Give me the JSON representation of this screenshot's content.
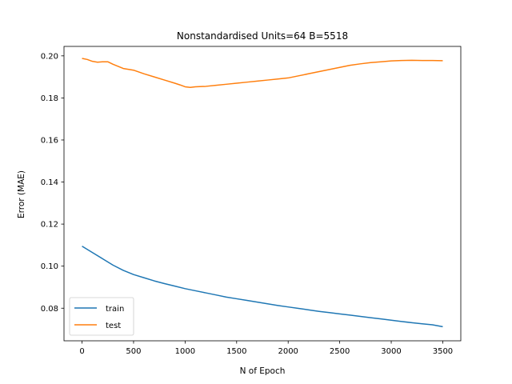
{
  "chart_data": {
    "type": "line",
    "title": "Nonstandardised Units=64 B=5518",
    "xlabel": "N of Epoch",
    "ylabel": "Error (MAE)",
    "xlim": [
      -175,
      3675
    ],
    "ylim": [
      0.0645,
      0.2045
    ],
    "xticks": [
      0,
      500,
      1000,
      1500,
      2000,
      2500,
      3000,
      3500
    ],
    "yticks": [
      0.08,
      0.1,
      0.12,
      0.14,
      0.16,
      0.18,
      0.2
    ],
    "ytick_labels": [
      "0.08",
      "0.10",
      "0.12",
      "0.14",
      "0.16",
      "0.18",
      "0.20"
    ],
    "grid": false,
    "legend_position": "lower-left",
    "series": [
      {
        "name": "train",
        "color": "#1f77b4",
        "x": [
          0,
          100,
          200,
          300,
          400,
          500,
          600,
          700,
          800,
          900,
          1000,
          1100,
          1200,
          1300,
          1400,
          1500,
          1600,
          1700,
          1800,
          1900,
          2000,
          2100,
          2200,
          2300,
          2400,
          2500,
          2600,
          2700,
          2800,
          2900,
          3000,
          3100,
          3200,
          3300,
          3400,
          3500
        ],
        "y": [
          0.1095,
          0.1065,
          0.1035,
          0.1005,
          0.098,
          0.096,
          0.0945,
          0.093,
          0.0917,
          0.0905,
          0.0893,
          0.0883,
          0.0873,
          0.0863,
          0.0853,
          0.0845,
          0.0837,
          0.0829,
          0.0821,
          0.0813,
          0.0806,
          0.0799,
          0.0792,
          0.0785,
          0.0779,
          0.0773,
          0.0767,
          0.0761,
          0.0755,
          0.0749,
          0.0743,
          0.0737,
          0.0731,
          0.0726,
          0.0721,
          0.0712
        ]
      },
      {
        "name": "test",
        "color": "#ff7f0e",
        "x": [
          0,
          50,
          100,
          150,
          200,
          250,
          300,
          350,
          400,
          500,
          600,
          700,
          800,
          900,
          950,
          1000,
          1050,
          1100,
          1200,
          1300,
          1400,
          1500,
          1600,
          1700,
          1800,
          1900,
          2000,
          2100,
          2200,
          2300,
          2400,
          2500,
          2600,
          2700,
          2800,
          2900,
          3000,
          3100,
          3200,
          3300,
          3400,
          3500
        ],
        "y": [
          0.1988,
          0.1983,
          0.1974,
          0.197,
          0.1972,
          0.1972,
          0.196,
          0.195,
          0.194,
          0.1932,
          0.1915,
          0.19,
          0.1885,
          0.187,
          0.1862,
          0.1853,
          0.185,
          0.1853,
          0.1855,
          0.186,
          0.1865,
          0.187,
          0.1875,
          0.188,
          0.1885,
          0.189,
          0.1895,
          0.1905,
          0.1915,
          0.1925,
          0.1935,
          0.1945,
          0.1955,
          0.1962,
          0.1968,
          0.1972,
          0.1976,
          0.1978,
          0.1979,
          0.1978,
          0.1978,
          0.1977
        ]
      }
    ]
  }
}
